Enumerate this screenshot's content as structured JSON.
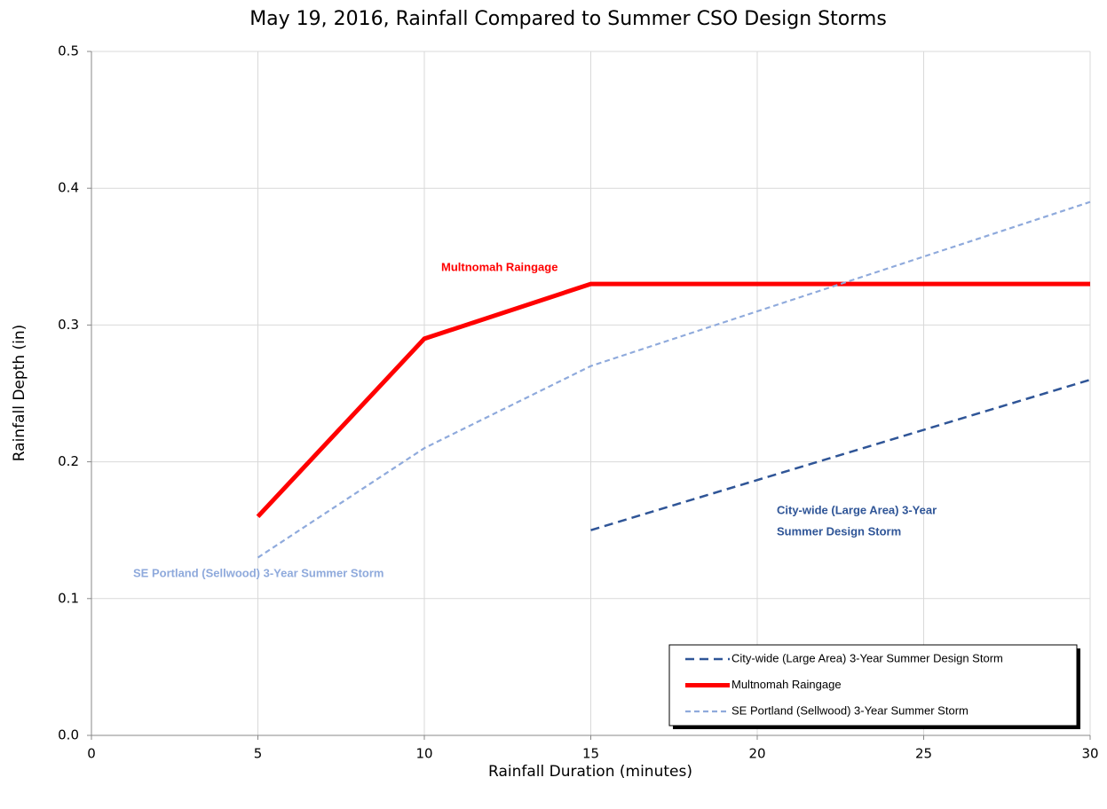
{
  "chart_data": {
    "type": "line",
    "title": "May 19, 2016, Rainfall Compared to Summer CSO Design Storms",
    "x_label": "Rainfall Duration (minutes)",
    "y_label": "Rainfall Depth (in)",
    "xlim": [
      0,
      30
    ],
    "xticks": [
      0,
      5,
      10,
      15,
      20,
      25,
      30
    ],
    "ylim": [
      0,
      0.5
    ],
    "yticks": [
      {
        "value": 0,
        "label": "0.0"
      },
      0.1,
      0.2,
      0.3,
      0.4,
      0.5
    ],
    "grid": true,
    "legend": "lower right",
    "series": [
      {
        "name": "City-wide (Large Area) 3-Year Summer Design Storm",
        "color": "#2f5597",
        "dash": "10,6",
        "width": 2.5,
        "x": [
          15,
          30
        ],
        "values": [
          0.15,
          0.26
        ]
      },
      {
        "name": "Multnomah Raingage",
        "color": "#ff0000",
        "dash": "none",
        "width": 5,
        "x": [
          5,
          10,
          15,
          30
        ],
        "values": [
          0.16,
          0.29,
          0.33,
          0.33
        ]
      },
      {
        "name": "SE Portland (Sellwood) 3-Year Summer Storm",
        "color": "#8faadc",
        "dash": "6,4",
        "width": 2.2,
        "x": [
          5,
          10,
          15,
          20,
          25,
          30
        ],
        "values": [
          0.13,
          0.21,
          0.27,
          0.31,
          0.35,
          0.39
        ]
      }
    ],
    "annotations": [
      {
        "text": [
          "Multnomah Raingage"
        ],
        "color": "#ff0000"
      },
      {
        "text": [
          "City-wide (Large Area) 3-Year",
          "Summer Design Storm"
        ],
        "color": "#2f5597"
      },
      {
        "text": [
          "SE Portland (Sellwood) 3-Year Summer Storm"
        ],
        "color": "#8faadc"
      }
    ]
  }
}
